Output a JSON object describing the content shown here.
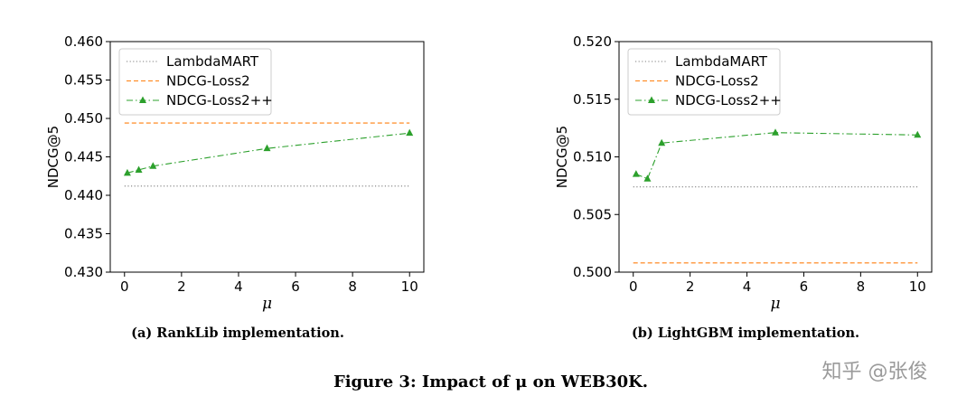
{
  "chart_data": [
    {
      "type": "line",
      "x": [
        0.1,
        0.5,
        1,
        5,
        10
      ],
      "series": [
        {
          "name": "LambdaMART",
          "style": "dotted",
          "color": "#7f7f7f",
          "x": [
            0,
            10
          ],
          "values": [
            0.4412,
            0.4412
          ]
        },
        {
          "name": "NDCG-Loss2",
          "style": "dashed",
          "color": "#ff7f0e",
          "x": [
            0,
            10
          ],
          "values": [
            0.4494,
            0.4494
          ]
        },
        {
          "name": "NDCG-Loss2++",
          "style": "dashdot-triangle",
          "color": "#2ca02c",
          "x": [
            0.1,
            0.5,
            1,
            5,
            10
          ],
          "values": [
            0.4429,
            0.4433,
            0.4438,
            0.4461,
            0.4481
          ]
        }
      ],
      "xlabel": "μ",
      "ylabel": "NDCG@5",
      "xlim": [
        -0.5,
        10.5
      ],
      "ylim": [
        0.43,
        0.46
      ],
      "xticks": [
        "0",
        "2",
        "4",
        "6",
        "8",
        "10"
      ],
      "yticks": [
        "0.430",
        "0.435",
        "0.440",
        "0.445",
        "0.450",
        "0.455",
        "0.460"
      ],
      "legend": "top-left",
      "subcaption": "(a) RankLib implementation."
    },
    {
      "type": "line",
      "x": [
        0.1,
        0.5,
        1,
        5,
        10
      ],
      "series": [
        {
          "name": "LambdaMART",
          "style": "dotted",
          "color": "#7f7f7f",
          "x": [
            0,
            10
          ],
          "values": [
            0.5074,
            0.5074
          ]
        },
        {
          "name": "NDCG-Loss2",
          "style": "dashed",
          "color": "#ff7f0e",
          "x": [
            0,
            10
          ],
          "values": [
            0.5008,
            0.5008
          ]
        },
        {
          "name": "NDCG-Loss2++",
          "style": "dashdot-triangle",
          "color": "#2ca02c",
          "x": [
            0.1,
            0.5,
            1,
            5,
            10
          ],
          "values": [
            0.5085,
            0.5081,
            0.5112,
            0.5121,
            0.5119
          ]
        }
      ],
      "xlabel": "μ",
      "ylabel": "NDCG@5",
      "xlim": [
        -0.5,
        10.5
      ],
      "ylim": [
        0.5,
        0.52
      ],
      "xticks": [
        "0",
        "2",
        "4",
        "6",
        "8",
        "10"
      ],
      "yticks": [
        "0.500",
        "0.505",
        "0.510",
        "0.515",
        "0.520"
      ],
      "legend": "top-left",
      "subcaption": "(b) LightGBM implementation."
    }
  ],
  "caption": "Figure 3: Impact of μ on WEB30K.",
  "watermark": "知乎 @张俊"
}
